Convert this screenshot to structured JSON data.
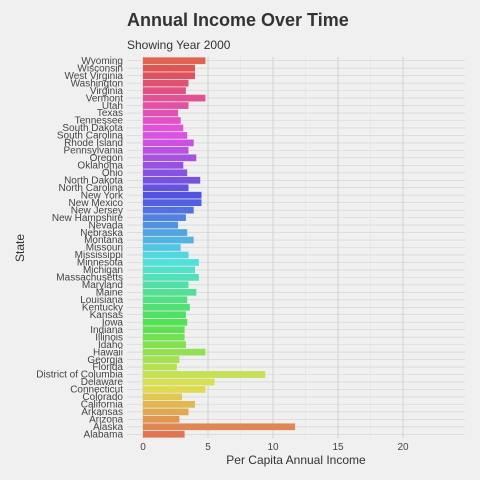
{
  "header": {
    "title": "Annual Income Over Time",
    "subtitle": "Showing Year 2000"
  },
  "chart_data": {
    "type": "bar",
    "orientation": "horizontal",
    "title": "Annual Income Over Time",
    "subtitle": "Showing Year 2000",
    "xlabel": "Per Capita Annual Income",
    "ylabel": "State",
    "xlim": [
      0,
      25
    ],
    "xticks": [
      0,
      5,
      10,
      15,
      20
    ],
    "grid": true,
    "legend": "none",
    "categories": [
      "Alabama",
      "Alaska",
      "Arizona",
      "Arkansas",
      "California",
      "Colorado",
      "Connecticut",
      "Delaware",
      "District of Columbia",
      "Florida",
      "Georgia",
      "Hawaii",
      "Idaho",
      "Illinois",
      "Indiana",
      "Iowa",
      "Kansas",
      "Kentucky",
      "Louisiana",
      "Maine",
      "Maryland",
      "Massachusetts",
      "Michigan",
      "Minnesota",
      "Mississippi",
      "Missouri",
      "Montana",
      "Nebraska",
      "Nevada",
      "New Hampshire",
      "New Jersey",
      "New Mexico",
      "New York",
      "North Carolina",
      "North Dakota",
      "Ohio",
      "Oklahoma",
      "Oregon",
      "Pennsylvania",
      "Rhode Island",
      "South Carolina",
      "South Dakota",
      "Tennessee",
      "Texas",
      "Utah",
      "Vermont",
      "Virginia",
      "Washington",
      "West Virginia",
      "Wisconsin",
      "Wyoming"
    ],
    "values": [
      3.2,
      11.7,
      2.8,
      3.5,
      4.0,
      3.0,
      4.8,
      5.5,
      9.4,
      2.6,
      2.8,
      4.8,
      3.3,
      3.2,
      3.2,
      3.4,
      3.3,
      3.6,
      3.4,
      4.1,
      3.5,
      4.3,
      4.0,
      4.3,
      3.5,
      2.9,
      3.9,
      3.4,
      2.7,
      3.3,
      3.9,
      4.5,
      4.5,
      3.5,
      4.4,
      3.4,
      3.1,
      4.1,
      3.5,
      3.9,
      3.4,
      3.1,
      2.9,
      2.7,
      3.5,
      4.8,
      3.3,
      3.5,
      4.0,
      4.0,
      4.8
    ]
  }
}
